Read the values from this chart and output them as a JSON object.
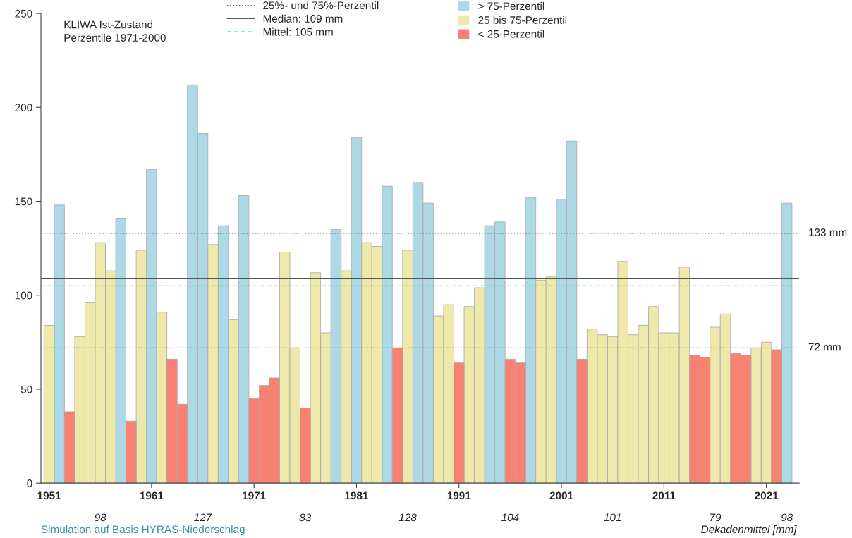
{
  "chart_data": {
    "type": "bar",
    "x": [
      1951,
      1952,
      1953,
      1954,
      1955,
      1956,
      1957,
      1958,
      1959,
      1960,
      1961,
      1962,
      1963,
      1964,
      1965,
      1966,
      1967,
      1968,
      1969,
      1970,
      1971,
      1972,
      1973,
      1974,
      1975,
      1976,
      1977,
      1978,
      1979,
      1980,
      1981,
      1982,
      1983,
      1984,
      1985,
      1986,
      1987,
      1988,
      1989,
      1990,
      1991,
      1992,
      1993,
      1994,
      1995,
      1996,
      1997,
      1998,
      1999,
      2000,
      2001,
      2002,
      2003,
      2004,
      2005,
      2006,
      2007,
      2008,
      2009,
      2010,
      2011,
      2012,
      2013,
      2014,
      2015,
      2016,
      2017,
      2018,
      2019,
      2020,
      2021,
      2022,
      2023
    ],
    "series": [
      {
        "name": "> 75-Perzentil",
        "color": "#add8e6",
        "values": [
          null,
          148,
          null,
          null,
          null,
          null,
          null,
          141,
          null,
          null,
          167,
          null,
          null,
          null,
          212,
          186,
          null,
          137,
          null,
          153,
          null,
          null,
          null,
          null,
          null,
          null,
          null,
          null,
          135,
          null,
          184,
          null,
          null,
          158,
          null,
          null,
          160,
          149,
          null,
          null,
          null,
          null,
          null,
          137,
          139,
          null,
          null,
          152,
          null,
          null,
          151,
          182,
          null,
          null,
          null,
          null,
          null,
          null,
          null,
          null,
          null,
          null,
          null,
          null,
          null,
          null,
          null,
          null,
          null,
          null,
          null,
          null,
          149
        ]
      },
      {
        "name": "25 bis 75-Perzentil",
        "color": "#eee8aa",
        "values": [
          84,
          null,
          null,
          78,
          96,
          128,
          113,
          null,
          null,
          124,
          null,
          91,
          null,
          null,
          null,
          null,
          127,
          null,
          87,
          null,
          null,
          null,
          null,
          123,
          72,
          null,
          112,
          80,
          null,
          113,
          null,
          128,
          126,
          null,
          null,
          124,
          null,
          null,
          89,
          95,
          null,
          94,
          104,
          null,
          null,
          null,
          null,
          null,
          108,
          110,
          null,
          null,
          null,
          82,
          79,
          78,
          118,
          79,
          84,
          94,
          80,
          80,
          115,
          null,
          null,
          83,
          90,
          null,
          null,
          72,
          75,
          null,
          null
        ]
      },
      {
        "name": "< 25-Perzentil",
        "color": "#fa8072",
        "values": [
          null,
          null,
          38,
          null,
          null,
          null,
          null,
          null,
          33,
          null,
          null,
          null,
          66,
          42,
          null,
          null,
          null,
          null,
          null,
          null,
          45,
          52,
          56,
          null,
          null,
          40,
          null,
          null,
          null,
          null,
          null,
          null,
          null,
          null,
          72,
          null,
          null,
          null,
          null,
          null,
          64,
          null,
          null,
          null,
          null,
          66,
          64,
          null,
          null,
          null,
          null,
          null,
          66,
          null,
          null,
          null,
          null,
          null,
          null,
          null,
          null,
          null,
          null,
          68,
          67,
          null,
          null,
          69,
          68,
          null,
          null,
          71,
          null
        ]
      }
    ],
    "xlim": [
      1950.2,
      2024.2
    ],
    "xticks": [
      1951,
      1961,
      1971,
      1981,
      1991,
      2001,
      2011,
      2021
    ],
    "ylim": [
      0,
      250
    ],
    "yticks": [
      0,
      50,
      100,
      150,
      200,
      250
    ],
    "grid": false,
    "legend": "top",
    "ref_lines": [
      {
        "axis": "y",
        "value": 133,
        "label": "133 mm",
        "line_style": "dotted",
        "color": "#555555"
      },
      {
        "axis": "y",
        "value": 72,
        "label": "72 mm",
        "line_style": "dotted",
        "color": "#555555"
      },
      {
        "axis": "y",
        "value": 109,
        "label": "Median: 109 mm",
        "line_style": "solid",
        "color": "#555555"
      },
      {
        "axis": "y",
        "value": 105,
        "label": "Mittel: 105 mm",
        "line_style": "dashed",
        "color": "#33dd33"
      }
    ],
    "annotations": [
      "KLIWA Ist-Zustand\nPerzentile 1971-2000",
      "25%- und 75%-Perzentil",
      "Simulation auf Basis HYRAS-Niederschlag",
      "Dekadenmittel [mm]",
      "98",
      "127",
      "83",
      "128",
      "104",
      "101",
      "79",
      "98"
    ]
  }
}
